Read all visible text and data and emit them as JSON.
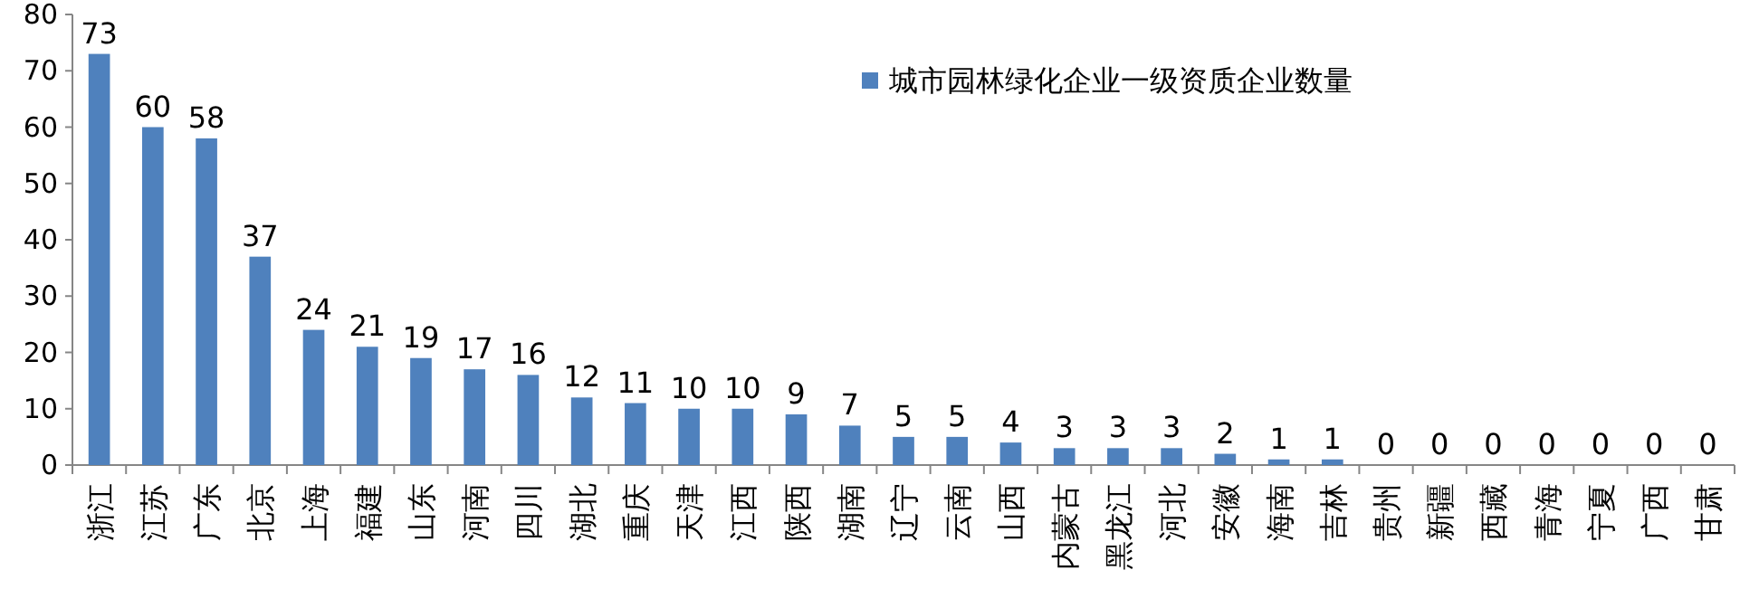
{
  "chart_data": {
    "type": "bar",
    "categories": [
      "浙江",
      "江苏",
      "广东",
      "北京",
      "上海",
      "福建",
      "山东",
      "河南",
      "四川",
      "湖北",
      "重庆",
      "天津",
      "江西",
      "陕西",
      "湖南",
      "辽宁",
      "云南",
      "山西",
      "内蒙古",
      "黑龙江",
      "河北",
      "安徽",
      "海南",
      "吉林",
      "贵州",
      "新疆",
      "西藏",
      "青海",
      "宁夏",
      "广西",
      "甘肃"
    ],
    "series": [
      {
        "name": "城市园林绿化企业一级资质企业数量",
        "color": "#4f81bd",
        "values": [
          73,
          60,
          58,
          37,
          24,
          21,
          19,
          17,
          16,
          12,
          11,
          10,
          10,
          9,
          7,
          5,
          5,
          4,
          3,
          3,
          3,
          2,
          1,
          1,
          0,
          0,
          0,
          0,
          0,
          0,
          0
        ]
      }
    ],
    "ylim": [
      0,
      80
    ],
    "yticks": [
      0,
      10,
      20,
      30,
      40,
      50,
      60,
      70,
      80
    ],
    "data_labels": true,
    "legend": "top right",
    "grid": false
  }
}
